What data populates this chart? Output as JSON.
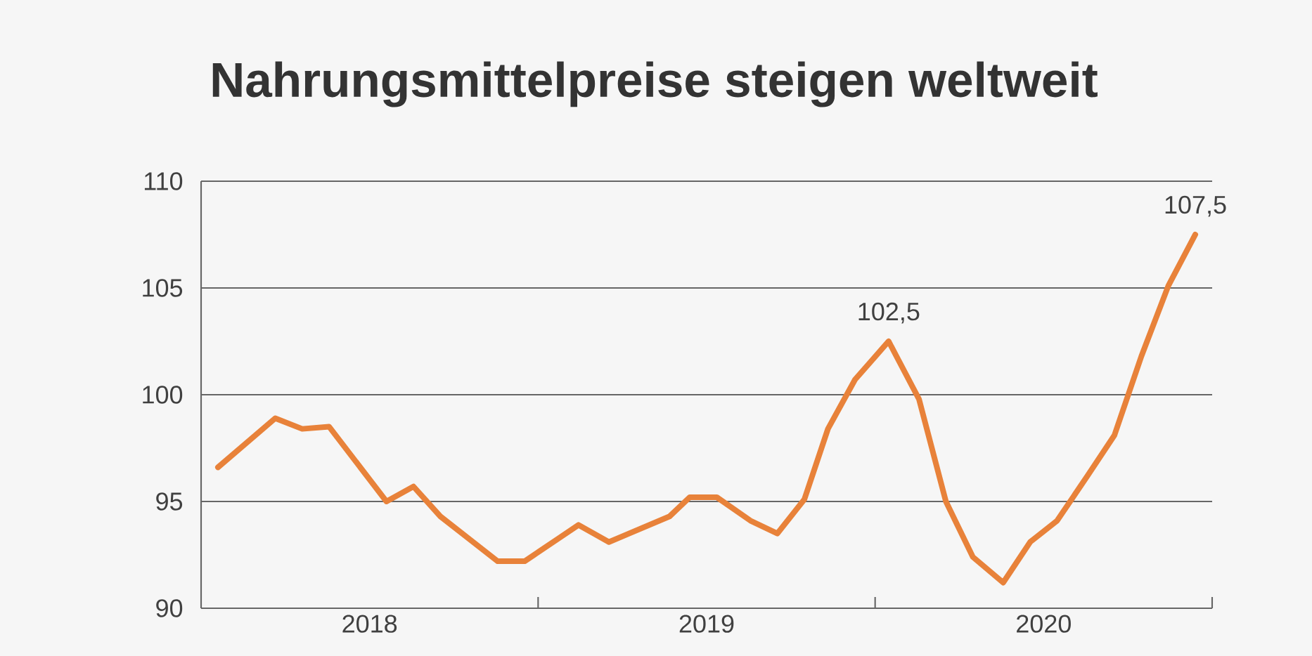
{
  "chart_data": {
    "type": "line",
    "title": "Nahrungsmittelpreise steigen weltweit",
    "x": [
      2018.05,
      2018.22,
      2018.3,
      2018.38,
      2018.55,
      2018.63,
      2018.71,
      2018.88,
      2018.96,
      2019.12,
      2019.21,
      2019.39,
      2019.45,
      2019.53,
      2019.63,
      2019.71,
      2019.79,
      2019.86,
      2019.94,
      2020.04,
      2020.13,
      2020.21,
      2020.29,
      2020.38,
      2020.46,
      2020.54,
      2020.63,
      2020.71,
      2020.79,
      2020.87,
      2020.95
    ],
    "series": [
      {
        "color": "#e8823a",
        "values": [
          96.6,
          98.9,
          98.4,
          98.5,
          95.0,
          95.7,
          94.3,
          92.2,
          92.2,
          93.9,
          93.1,
          94.3,
          95.2,
          95.2,
          94.1,
          93.5,
          95.1,
          98.4,
          100.7,
          102.5,
          99.8,
          95.0,
          92.4,
          91.2,
          93.1,
          94.1,
          96.2,
          98.1,
          101.8,
          105.1,
          107.5
        ]
      }
    ],
    "xlim": [
      2018,
      2021
    ],
    "xticks": [
      {
        "value": 2018.5,
        "label": "2018"
      },
      {
        "value": 2019.5,
        "label": "2019"
      },
      {
        "value": 2020.5,
        "label": "2020"
      },
      {
        "value": 2019,
        "label": null
      },
      {
        "value": 2020,
        "label": null
      },
      {
        "value": 2021,
        "label": null
      }
    ],
    "ylim": [
      90,
      110
    ],
    "yticks": [
      90,
      95,
      100,
      105,
      110
    ],
    "grid": "y",
    "line_style": "solid",
    "annotations": [
      {
        "text": "102,5",
        "x": 2020.04,
        "y": 102.5
      },
      {
        "text": "107,5",
        "x": 2020.95,
        "y": 107.5
      }
    ]
  }
}
